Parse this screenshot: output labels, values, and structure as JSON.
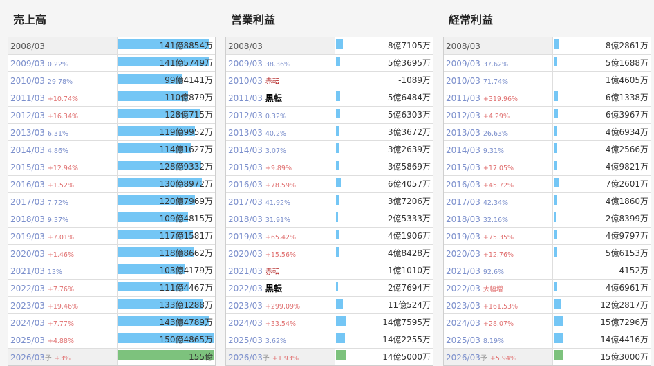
{
  "colors": {
    "bar": "#74c6f5",
    "forecast_bar": "#7dc27d",
    "increase": "#e07070",
    "decrease": "#7b8fcc"
  },
  "panels": [
    {
      "title": "売上高",
      "rows": [
        {
          "year": "2008/03",
          "change": "",
          "dir": "base",
          "value": "141億8854万",
          "bar": 0.95
        },
        {
          "year": "2009/03",
          "change": "0.22%",
          "dir": "down",
          "value": "141億5749万",
          "bar": 0.94
        },
        {
          "year": "2010/03",
          "change": "29.78%",
          "dir": "down",
          "value": "99億4141万",
          "bar": 0.66
        },
        {
          "year": "2011/03",
          "change": "+10.74%",
          "dir": "up",
          "value": "110億879万",
          "bar": 0.73
        },
        {
          "year": "2012/03",
          "change": "+16.34%",
          "dir": "up",
          "value": "128億715万",
          "bar": 0.85
        },
        {
          "year": "2013/03",
          "change": "6.31%",
          "dir": "down",
          "value": "119億9952万",
          "bar": 0.8
        },
        {
          "year": "2014/03",
          "change": "4.86%",
          "dir": "down",
          "value": "114億1627万",
          "bar": 0.76
        },
        {
          "year": "2015/03",
          "change": "+12.94%",
          "dir": "up",
          "value": "128億9332万",
          "bar": 0.86
        },
        {
          "year": "2016/03",
          "change": "+1.52%",
          "dir": "up",
          "value": "130億8972万",
          "bar": 0.87
        },
        {
          "year": "2017/03",
          "change": "7.72%",
          "dir": "down",
          "value": "120億7969万",
          "bar": 0.8
        },
        {
          "year": "2018/03",
          "change": "9.37%",
          "dir": "down",
          "value": "109億4815万",
          "bar": 0.73
        },
        {
          "year": "2019/03",
          "change": "+7.01%",
          "dir": "up",
          "value": "117億1581万",
          "bar": 0.78
        },
        {
          "year": "2020/03",
          "change": "+1.46%",
          "dir": "up",
          "value": "118億8662万",
          "bar": 0.79
        },
        {
          "year": "2021/03",
          "change": "13%",
          "dir": "down",
          "value": "103億4179万",
          "bar": 0.69
        },
        {
          "year": "2022/03",
          "change": "+7.76%",
          "dir": "up",
          "value": "111億4467万",
          "bar": 0.74
        },
        {
          "year": "2023/03",
          "change": "+19.46%",
          "dir": "up",
          "value": "133億1288万",
          "bar": 0.88
        },
        {
          "year": "2024/03",
          "change": "+7.77%",
          "dir": "up",
          "value": "143億4789万",
          "bar": 0.95
        },
        {
          "year": "2025/03",
          "change": "+4.88%",
          "dir": "up",
          "value": "150億4865万",
          "bar": 1.0
        },
        {
          "year": "2026/03",
          "pre": "予",
          "change": "+3%",
          "dir": "fcst",
          "value": "155億",
          "bar": 1.0,
          "forecast": true
        }
      ]
    },
    {
      "title": "営業利益",
      "rows": [
        {
          "year": "2008/03",
          "change": "",
          "dir": "base",
          "value": "8億7105万",
          "bar": 0.07
        },
        {
          "year": "2009/03",
          "change": "38.36%",
          "dir": "down",
          "value": "5億3695万",
          "bar": 0.04
        },
        {
          "year": "2010/03",
          "change": "赤転",
          "dir": "red",
          "value": "-1089万",
          "bar": 0
        },
        {
          "year": "2011/03",
          "change": "黒転",
          "dir": "black",
          "value": "5億6484万",
          "bar": 0.045
        },
        {
          "year": "2012/03",
          "change": "0.32%",
          "dir": "down",
          "value": "5億6303万",
          "bar": 0.045
        },
        {
          "year": "2013/03",
          "change": "40.2%",
          "dir": "down",
          "value": "3億3672万",
          "bar": 0.027
        },
        {
          "year": "2014/03",
          "change": "3.07%",
          "dir": "down",
          "value": "3億2639万",
          "bar": 0.026
        },
        {
          "year": "2015/03",
          "change": "+9.89%",
          "dir": "up",
          "value": "3億5869万",
          "bar": 0.028
        },
        {
          "year": "2016/03",
          "change": "+78.59%",
          "dir": "up",
          "value": "6億4057万",
          "bar": 0.05
        },
        {
          "year": "2017/03",
          "change": "41.92%",
          "dir": "down",
          "value": "3億7206万",
          "bar": 0.03
        },
        {
          "year": "2018/03",
          "change": "31.91%",
          "dir": "down",
          "value": "2億5333万",
          "bar": 0.02
        },
        {
          "year": "2019/03",
          "change": "+65.42%",
          "dir": "up",
          "value": "4億1906万",
          "bar": 0.033
        },
        {
          "year": "2020/03",
          "change": "+15.56%",
          "dir": "up",
          "value": "4億8428万",
          "bar": 0.038
        },
        {
          "year": "2021/03",
          "change": "赤転",
          "dir": "red",
          "value": "-1億1010万",
          "bar": 0
        },
        {
          "year": "2022/03",
          "change": "黒転",
          "dir": "black",
          "value": "2億7694万",
          "bar": 0.022
        },
        {
          "year": "2023/03",
          "change": "+299.09%",
          "dir": "up",
          "value": "11億524万",
          "bar": 0.075
        },
        {
          "year": "2024/03",
          "change": "+33.54%",
          "dir": "up",
          "value": "14億7595万",
          "bar": 0.1
        },
        {
          "year": "2025/03",
          "change": "3.62%",
          "dir": "down",
          "value": "14億2255万",
          "bar": 0.096
        },
        {
          "year": "2026/03",
          "pre": "予",
          "change": "+1.93%",
          "dir": "fcst",
          "value": "14億5000万",
          "bar": 0.098,
          "forecast": true
        }
      ]
    },
    {
      "title": "経常利益",
      "rows": [
        {
          "year": "2008/03",
          "change": "",
          "dir": "base",
          "value": "8億2861万",
          "bar": 0.055
        },
        {
          "year": "2009/03",
          "change": "37.62%",
          "dir": "down",
          "value": "5億1688万",
          "bar": 0.034
        },
        {
          "year": "2010/03",
          "change": "71.74%",
          "dir": "down",
          "value": "1億4605万",
          "bar": 0.01
        },
        {
          "year": "2011/03",
          "change": "+319.96%",
          "dir": "up",
          "value": "6億1338万",
          "bar": 0.04
        },
        {
          "year": "2012/03",
          "change": "+4.29%",
          "dir": "up",
          "value": "6億3967万",
          "bar": 0.042
        },
        {
          "year": "2013/03",
          "change": "26.63%",
          "dir": "down",
          "value": "4億6934万",
          "bar": 0.031
        },
        {
          "year": "2014/03",
          "change": "9.31%",
          "dir": "down",
          "value": "4億2566万",
          "bar": 0.028
        },
        {
          "year": "2015/03",
          "change": "+17.05%",
          "dir": "up",
          "value": "4億9821万",
          "bar": 0.033
        },
        {
          "year": "2016/03",
          "change": "+45.72%",
          "dir": "up",
          "value": "7億2601万",
          "bar": 0.048
        },
        {
          "year": "2017/03",
          "change": "42.34%",
          "dir": "down",
          "value": "4億1860万",
          "bar": 0.028
        },
        {
          "year": "2018/03",
          "change": "32.16%",
          "dir": "down",
          "value": "2億8399万",
          "bar": 0.019
        },
        {
          "year": "2019/03",
          "change": "+75.35%",
          "dir": "up",
          "value": "4億9797万",
          "bar": 0.033
        },
        {
          "year": "2020/03",
          "change": "+12.76%",
          "dir": "up",
          "value": "5億6153万",
          "bar": 0.037
        },
        {
          "year": "2021/03",
          "change": "92.6%",
          "dir": "down",
          "value": "4152万",
          "bar": 0.003
        },
        {
          "year": "2022/03",
          "change": "大幅増",
          "dir": "up",
          "value": "4億6961万",
          "bar": 0.031
        },
        {
          "year": "2023/03",
          "change": "+161.53%",
          "dir": "up",
          "value": "12億2817万",
          "bar": 0.081
        },
        {
          "year": "2024/03",
          "change": "+28.07%",
          "dir": "up",
          "value": "15億7296万",
          "bar": 0.104
        },
        {
          "year": "2025/03",
          "change": "8.19%",
          "dir": "down",
          "value": "14億4416万",
          "bar": 0.095
        },
        {
          "year": "2026/03",
          "pre": "予",
          "change": "+5.94%",
          "dir": "fcst",
          "value": "15億3000万",
          "bar": 0.1,
          "forecast": true
        }
      ]
    }
  ]
}
